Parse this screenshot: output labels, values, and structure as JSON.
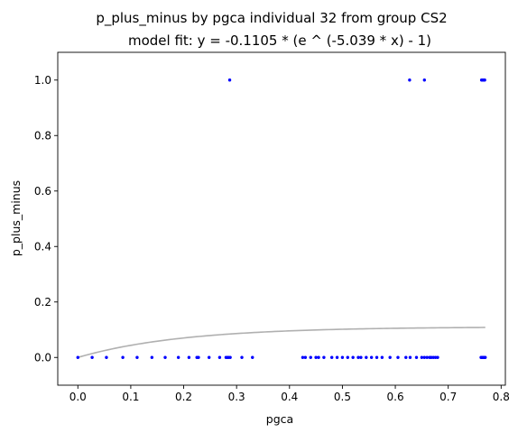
{
  "chart_data": {
    "type": "scatter",
    "title": "p_plus_minus by pgca individual 32 from group CS2",
    "subtitle": "model fit: y = -0.1105 * (e ^ (-5.039 * x) - 1)",
    "xlabel": "pgca",
    "ylabel": "p_plus_minus",
    "xlim": [
      -0.038,
      0.808
    ],
    "ylim": [
      -0.1,
      1.1
    ],
    "xticks": [
      0.0,
      0.1,
      0.2,
      0.3,
      0.4,
      0.5,
      0.6,
      0.7,
      0.8
    ],
    "xtick_labels": [
      "0.0",
      "0.1",
      "0.2",
      "0.3",
      "0.4",
      "0.5",
      "0.6",
      "0.7",
      "0.8"
    ],
    "yticks": [
      0.0,
      0.2,
      0.4,
      0.6,
      0.8,
      1.0
    ],
    "ytick_labels": [
      "0.0",
      "0.2",
      "0.4",
      "0.6",
      "0.8",
      "1.0"
    ],
    "grid": false,
    "point_color": "#0000ff",
    "fit_color": "#b0b0b0",
    "series": [
      {
        "x": [
          0.0,
          0.027,
          0.054,
          0.085,
          0.112,
          0.14,
          0.165,
          0.19,
          0.21,
          0.225,
          0.228,
          0.248,
          0.268,
          0.28,
          0.283,
          0.285,
          0.288,
          0.31,
          0.33,
          0.425,
          0.43,
          0.44,
          0.45,
          0.455,
          0.465,
          0.48,
          0.49,
          0.5,
          0.51,
          0.52,
          0.53,
          0.535,
          0.545,
          0.555,
          0.565,
          0.575,
          0.59,
          0.605,
          0.62,
          0.628,
          0.64,
          0.65,
          0.655,
          0.66,
          0.665,
          0.668,
          0.672,
          0.676,
          0.68,
          0.762,
          0.764,
          0.766,
          0.768,
          0.77,
          0.287,
          0.627,
          0.655,
          0.763,
          0.765,
          0.767,
          0.769
        ],
        "y": [
          0,
          0,
          0,
          0,
          0,
          0,
          0,
          0,
          0,
          0,
          0,
          0,
          0,
          0,
          0,
          0,
          0,
          0,
          0,
          0,
          0,
          0,
          0,
          0,
          0,
          0,
          0,
          0,
          0,
          0,
          0,
          0,
          0,
          0,
          0,
          0,
          0,
          0,
          0,
          0,
          0,
          0,
          0,
          0,
          0,
          0,
          0,
          0,
          0,
          0,
          0,
          0,
          0,
          0,
          1,
          1,
          1,
          1,
          1,
          1,
          1
        ]
      }
    ],
    "fit": {
      "a": -0.1105,
      "b": -5.039
    }
  }
}
